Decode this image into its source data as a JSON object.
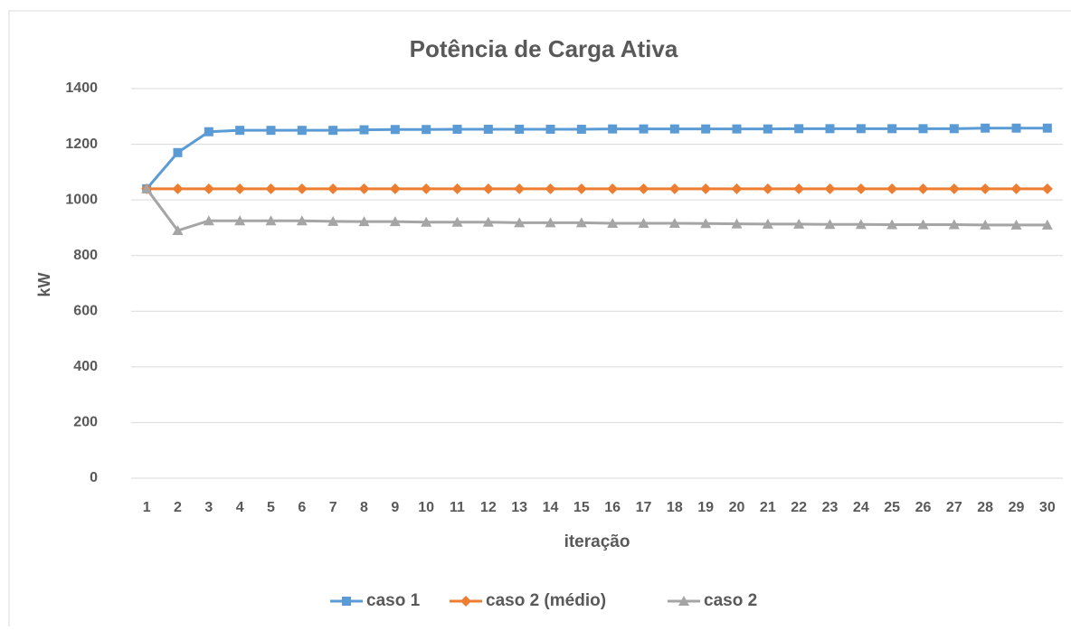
{
  "chart_data": {
    "type": "line",
    "title": "Potência de Carga Ativa",
    "x_label": "iteração",
    "y_label": "kW",
    "categories": [
      "1",
      "2",
      "3",
      "4",
      "5",
      "6",
      "7",
      "8",
      "9",
      "10",
      "11",
      "12",
      "13",
      "14",
      "15",
      "16",
      "17",
      "18",
      "19",
      "20",
      "21",
      "22",
      "23",
      "24",
      "25",
      "26",
      "27",
      "28",
      "29",
      "30"
    ],
    "series": [
      {
        "name": "caso 1",
        "color": "#5b9bd5",
        "marker": "square",
        "values": [
          1040,
          1170,
          1245,
          1250,
          1250,
          1250,
          1250,
          1252,
          1253,
          1253,
          1254,
          1254,
          1254,
          1254,
          1254,
          1255,
          1255,
          1255,
          1255,
          1255,
          1255,
          1256,
          1256,
          1256,
          1256,
          1256,
          1256,
          1258,
          1258,
          1258
        ]
      },
      {
        "name": "caso 2 (médio)",
        "color": "#ed7d31",
        "marker": "diamond",
        "values": [
          1040,
          1040,
          1040,
          1040,
          1040,
          1040,
          1040,
          1040,
          1040,
          1040,
          1040,
          1040,
          1040,
          1040,
          1040,
          1040,
          1040,
          1040,
          1040,
          1040,
          1040,
          1040,
          1040,
          1040,
          1040,
          1040,
          1040,
          1040,
          1040,
          1040
        ]
      },
      {
        "name": "caso 2",
        "color": "#a5a5a5",
        "marker": "triangle",
        "values": [
          1040,
          890,
          925,
          925,
          925,
          925,
          923,
          922,
          922,
          920,
          920,
          920,
          918,
          918,
          918,
          916,
          916,
          916,
          915,
          914,
          913,
          913,
          912,
          912,
          911,
          911,
          911,
          910,
          910,
          910
        ]
      }
    ],
    "ylim": [
      0,
      1400
    ],
    "yticks": [
      0,
      200,
      400,
      600,
      800,
      1000,
      1200,
      1400
    ],
    "grid": true,
    "legend": "bottom"
  }
}
